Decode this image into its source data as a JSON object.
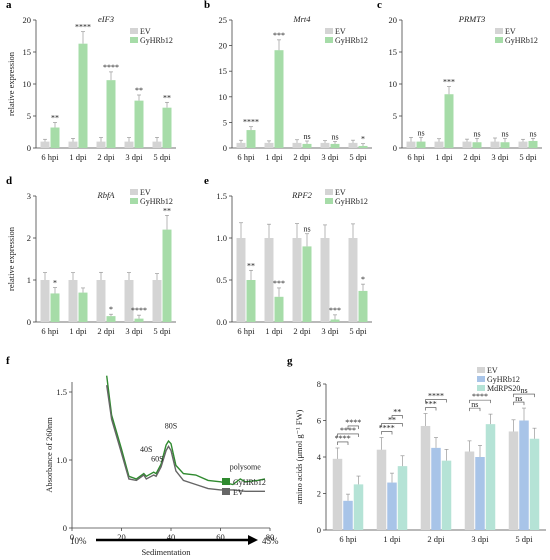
{
  "colors": {
    "ev": "#d4d4d4",
    "gy": "#a6dca8",
    "gy_line": "#2f8a2f",
    "ev_line": "#666666",
    "gy_g": "#a8c4e8",
    "md_g": "#b5e3d6"
  },
  "chart_data": [
    {
      "panel": "a",
      "type": "bar",
      "title": "eIF3",
      "ylabel": "relative expression",
      "ylim": [
        0,
        20
      ],
      "yticks": [
        "0",
        "5",
        "10",
        "15",
        "20"
      ],
      "categories": [
        "6 hpi",
        "1 dpi",
        "2 dpi",
        "3 dpi",
        "5 dpi"
      ],
      "series": [
        {
          "name": "EV",
          "values": [
            1,
            1,
            1,
            1,
            1
          ]
        },
        {
          "name": "GyHRb12",
          "values": [
            3.2,
            16.3,
            10.6,
            7.4,
            6.3
          ]
        }
      ],
      "significance": [
        "**",
        "****",
        "****",
        "**",
        "**"
      ]
    },
    {
      "panel": "b",
      "type": "bar",
      "title": "Mrt4",
      "ylim": [
        0,
        25
      ],
      "yticks": [
        "0",
        "5",
        "10",
        "15",
        "20",
        "25"
      ],
      "categories": [
        "6 hpi",
        "1 dpi",
        "2 dpi",
        "3 dpi",
        "5 dpi"
      ],
      "series": [
        {
          "name": "EV",
          "values": [
            1,
            1,
            1,
            1,
            1
          ]
        },
        {
          "name": "GyHRb12",
          "values": [
            3.5,
            19.1,
            0.8,
            0.8,
            0.4
          ]
        }
      ],
      "significance": [
        "****",
        "***",
        "ns",
        "ns",
        "*"
      ]
    },
    {
      "panel": "c",
      "type": "bar",
      "title": "PRMT3",
      "ylim": [
        0,
        20
      ],
      "yticks": [
        "0",
        "5",
        "10",
        "15",
        "20"
      ],
      "categories": [
        "6 hpi",
        "1 dpi",
        "2 dpi",
        "3 dpi",
        "5 dpi"
      ],
      "series": [
        {
          "name": "EV",
          "values": [
            1,
            1,
            1,
            1,
            1
          ]
        },
        {
          "name": "GyHRb12",
          "values": [
            1.0,
            8.4,
            0.9,
            0.9,
            1.1
          ]
        }
      ],
      "significance": [
        "ns",
        "***",
        "ns",
        "ns",
        "ns"
      ]
    },
    {
      "panel": "d",
      "type": "bar",
      "title": "RbfA",
      "ylabel": "relative expression",
      "ylim": [
        0,
        3
      ],
      "yticks": [
        "0",
        "1",
        "2",
        "3"
      ],
      "categories": [
        "6 hpi",
        "1 dpi",
        "2 dpi",
        "3 dpi",
        "5 dpi"
      ],
      "series": [
        {
          "name": "EV",
          "values": [
            1,
            1,
            1,
            1,
            1
          ]
        },
        {
          "name": "GyHRb12",
          "values": [
            0.68,
            0.7,
            0.14,
            0.08,
            2.2
          ]
        }
      ],
      "significance": [
        "*",
        "",
        "*",
        "****",
        "**"
      ]
    },
    {
      "panel": "e",
      "type": "bar",
      "title": "RPF2",
      "ylim": [
        0,
        1.5
      ],
      "yticks": [
        "0.0",
        "0.5",
        "1.0",
        "1.5"
      ],
      "categories": [
        "6 hpi",
        "1 dpi",
        "2 dpi",
        "3 dpi",
        "5 dpi"
      ],
      "series": [
        {
          "name": "EV",
          "values": [
            1.0,
            1.0,
            1.0,
            1.0,
            1.0
          ]
        },
        {
          "name": "GyHRb12",
          "values": [
            0.5,
            0.3,
            0.9,
            0.03,
            0.37
          ]
        }
      ],
      "significance": [
        "**",
        "***",
        "ns",
        "***",
        "*"
      ]
    },
    {
      "panel": "f",
      "type": "line",
      "xlabel": "Sedimentation",
      "ylabel": "Absorbance of 260nm",
      "xlim": [
        0,
        80
      ],
      "ylim": [
        0.5,
        1.5
      ],
      "xticks": [
        "0",
        "20",
        "40",
        "60",
        "80"
      ],
      "yticks": [
        "0",
        "1.0",
        "1.5"
      ],
      "gradient_low": "10%",
      "gradient_high": "45%",
      "annotations": [
        "40S",
        "60S",
        "80S",
        "polysome"
      ],
      "series": [
        {
          "name": "GyHRb12",
          "x": [
            14,
            16,
            20,
            23,
            26,
            29,
            30,
            33,
            34,
            36,
            38,
            39,
            40,
            42,
            45,
            50,
            55,
            60,
            65,
            68,
            70,
            75,
            78
          ],
          "y": [
            1.62,
            1.33,
            1.08,
            0.88,
            0.86,
            0.9,
            0.88,
            0.91,
            0.9,
            0.97,
            1.11,
            1.14,
            1.12,
            0.96,
            0.9,
            0.89,
            0.85,
            0.84,
            0.82,
            0.86,
            0.84,
            0.85,
            0.86
          ]
        },
        {
          "name": "EV",
          "x": [
            14,
            16,
            20,
            23,
            26,
            29,
            30,
            33,
            34,
            36,
            38,
            39,
            40,
            42,
            45,
            50,
            55,
            60,
            65,
            70,
            75,
            78
          ],
          "y": [
            1.55,
            1.3,
            1.05,
            0.86,
            0.85,
            0.89,
            0.86,
            0.89,
            0.88,
            0.95,
            1.07,
            1.1,
            1.07,
            0.92,
            0.85,
            0.82,
            0.79,
            0.78,
            0.78,
            0.77,
            0.77,
            0.77
          ]
        }
      ]
    },
    {
      "panel": "g",
      "type": "bar",
      "ylabel": "amino acids (μmol g⁻¹ FW)",
      "ylim": [
        0,
        8
      ],
      "yticks": [
        "0",
        "2",
        "4",
        "6",
        "8"
      ],
      "categories": [
        "6 hpi",
        "1 dpi",
        "2 dpi",
        "3 dpi",
        "5 dpi"
      ],
      "series": [
        {
          "name": "EV",
          "values": [
            3.9,
            4.4,
            5.7,
            4.3,
            5.4
          ]
        },
        {
          "name": "GyHRb12",
          "values": [
            1.6,
            2.6,
            4.5,
            4.0,
            6.0
          ]
        },
        {
          "name": "MdRPS20",
          "values": [
            2.5,
            3.5,
            3.8,
            5.8,
            5.0
          ]
        }
      ],
      "significance": [
        [
          "****",
          "****",
          "****"
        ],
        [
          "****",
          "**",
          "**"
        ],
        [
          "***",
          "****",
          ""
        ],
        [
          "ns",
          "****",
          ""
        ],
        [
          "ns",
          "ns",
          ""
        ]
      ]
    }
  ]
}
